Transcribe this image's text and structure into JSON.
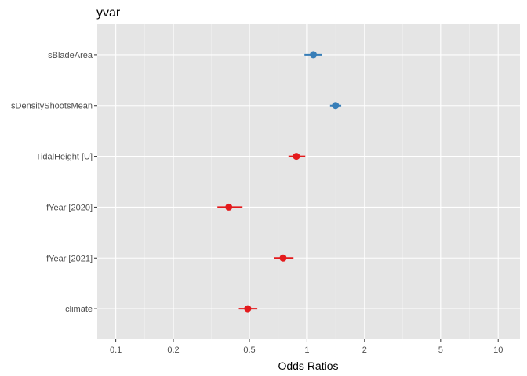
{
  "chart_data": {
    "type": "scatter",
    "title": "yvar",
    "xlabel": "Odds Ratios",
    "ylabel": "",
    "x_scale": "log10",
    "xlim": [
      0.08,
      13
    ],
    "x_ticks": [
      {
        "value": 0.1,
        "label": "0.1"
      },
      {
        "value": 0.2,
        "label": "0.2"
      },
      {
        "value": 0.5,
        "label": "0.5"
      },
      {
        "value": 1,
        "label": "1"
      },
      {
        "value": 2,
        "label": "2"
      },
      {
        "value": 5,
        "label": "5"
      },
      {
        "value": 10,
        "label": "10"
      }
    ],
    "reference_line": 1,
    "grid": true,
    "legend": "none",
    "colors": {
      "positive": "#377eb8",
      "negative": "#e41a1c",
      "panel": "#e5e5e5",
      "grid": "#ffffff"
    },
    "terms": [
      {
        "label": "sBladeArea",
        "estimate": 1.08,
        "ci_low": 0.97,
        "ci_high": 1.2,
        "direction": "positive"
      },
      {
        "label": "sDensityShootsMean",
        "estimate": 1.41,
        "ci_low": 1.32,
        "ci_high": 1.51,
        "direction": "positive"
      },
      {
        "label": "TidalHeight [U]",
        "estimate": 0.88,
        "ci_low": 0.8,
        "ci_high": 0.98,
        "direction": "negative"
      },
      {
        "label": "fYear [2020]",
        "estimate": 0.39,
        "ci_low": 0.34,
        "ci_high": 0.46,
        "direction": "negative"
      },
      {
        "label": "fYear [2021]",
        "estimate": 0.75,
        "ci_low": 0.67,
        "ci_high": 0.85,
        "direction": "negative"
      },
      {
        "label": "climate",
        "estimate": 0.49,
        "ci_low": 0.44,
        "ci_high": 0.55,
        "direction": "negative"
      }
    ]
  }
}
